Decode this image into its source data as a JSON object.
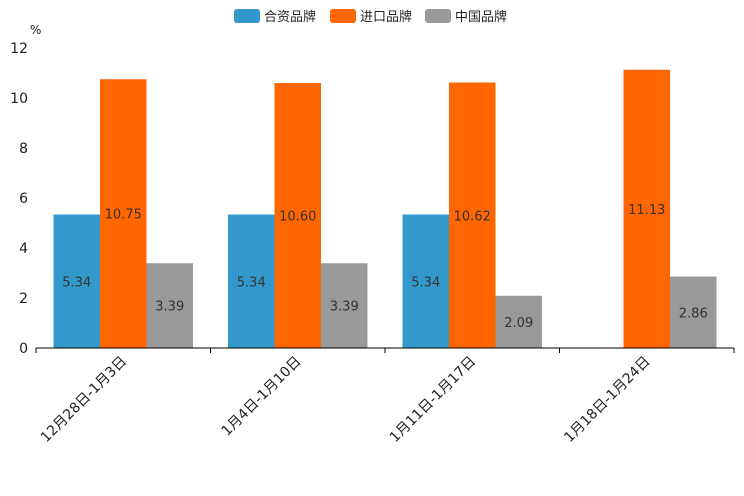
{
  "chart_data": {
    "type": "bar",
    "title": "",
    "xlabel": "",
    "ylabel": "%",
    "ylim": [
      0,
      12
    ],
    "yticks": [
      0,
      2,
      4,
      6,
      8,
      10,
      12
    ],
    "categories": [
      "12月28日-1月3日",
      "1月4日-1月10日",
      "1月11日-1月17日",
      "1月18日-1月24日"
    ],
    "series": [
      {
        "name": "合资品牌",
        "color": "#3399cc",
        "values": [
          5.34,
          5.34,
          5.34,
          null
        ],
        "labels": [
          "5.34",
          "5.34",
          "5.34",
          null
        ]
      },
      {
        "name": "进口品牌",
        "color": "#ff6600",
        "values": [
          10.75,
          10.6,
          10.62,
          11.13
        ],
        "labels": [
          "10.75",
          "10.60",
          "10.62",
          "11.13"
        ]
      },
      {
        "name": "中国品牌",
        "color": "#999999",
        "values": [
          3.39,
          3.39,
          2.09,
          2.86
        ],
        "labels": [
          "3.39",
          "3.39",
          "2.09",
          "2.86"
        ]
      }
    ],
    "legend_position": "top-center",
    "grid": false
  }
}
